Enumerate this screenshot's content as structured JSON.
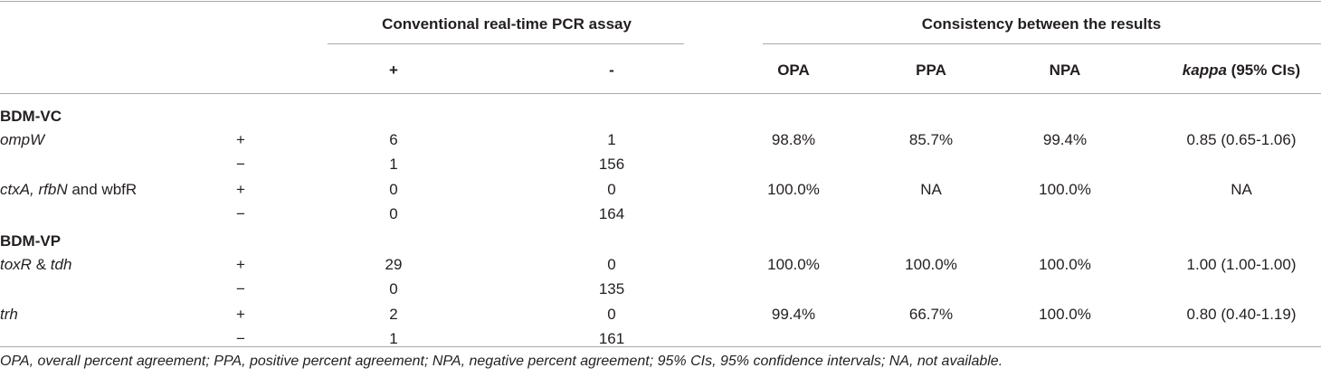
{
  "header": {
    "group1": "Conventional real-time PCR assay",
    "group2": "Consistency between the results",
    "col_pos": "+",
    "col_neg": "-",
    "col_opa": "OPA",
    "col_ppa": "PPA",
    "col_npa": "NPA",
    "col_kappa_italic": "kappa",
    "col_kappa_rest": " (95% CIs)"
  },
  "sections": [
    {
      "title": "BDM-VC"
    },
    {
      "title": "BDM-VP"
    }
  ],
  "rows": [
    {
      "gene": [
        {
          "t": "ompW",
          "i": true
        }
      ],
      "sign": "+",
      "pos": "6",
      "neg": "1",
      "opa": "98.8%",
      "ppa": "85.7%",
      "npa": "99.4%",
      "kappa": "0.85 (0.65-1.06)"
    },
    {
      "gene": [],
      "sign": "−",
      "pos": "1",
      "neg": "156",
      "opa": "",
      "ppa": "",
      "npa": "",
      "kappa": ""
    },
    {
      "gene": [
        {
          "t": "ctxA, rfbN",
          "i": true
        },
        {
          "t": " and wbfR",
          "i": false
        }
      ],
      "sign": "+",
      "pos": "0",
      "neg": "0",
      "opa": "100.0%",
      "ppa": "NA",
      "npa": "100.0%",
      "kappa": "NA"
    },
    {
      "gene": [],
      "sign": "−",
      "pos": "0",
      "neg": "164",
      "opa": "",
      "ppa": "",
      "npa": "",
      "kappa": ""
    },
    {
      "gene": [
        {
          "t": "toxR",
          "i": true
        },
        {
          "t": " & ",
          "i": false
        },
        {
          "t": "tdh",
          "i": true
        }
      ],
      "sign": "+",
      "pos": "29",
      "neg": "0",
      "opa": "100.0%",
      "ppa": "100.0%",
      "npa": "100.0%",
      "kappa": "1.00 (1.00-1.00)"
    },
    {
      "gene": [],
      "sign": "−",
      "pos": "0",
      "neg": "135",
      "opa": "",
      "ppa": "",
      "npa": "",
      "kappa": ""
    },
    {
      "gene": [
        {
          "t": "trh",
          "i": true
        }
      ],
      "sign": "+",
      "pos": "2",
      "neg": "0",
      "opa": "99.4%",
      "ppa": "66.7%",
      "npa": "100.0%",
      "kappa": "0.80 (0.40-1.19)"
    },
    {
      "gene": [],
      "sign": "−",
      "pos": "1",
      "neg": "161",
      "opa": "",
      "ppa": "",
      "npa": "",
      "kappa": ""
    }
  ],
  "footnote": "OPA, overall percent agreement; PPA, positive percent agreement; NPA, negative percent agreement; 95% CIs, 95% confidence intervals; NA, not available."
}
